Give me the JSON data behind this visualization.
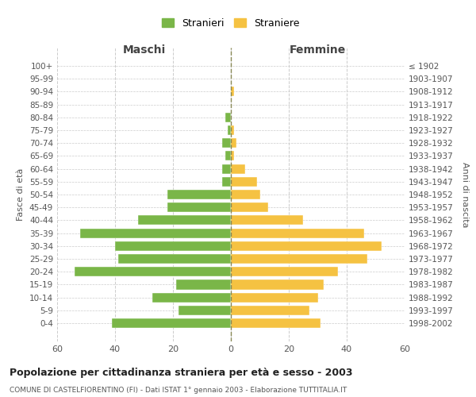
{
  "age_groups": [
    "100+",
    "95-99",
    "90-94",
    "85-89",
    "80-84",
    "75-79",
    "70-74",
    "65-69",
    "60-64",
    "55-59",
    "50-54",
    "45-49",
    "40-44",
    "35-39",
    "30-34",
    "25-29",
    "20-24",
    "15-19",
    "10-14",
    "5-9",
    "0-4"
  ],
  "birth_years": [
    "≤ 1902",
    "1903-1907",
    "1908-1912",
    "1913-1917",
    "1918-1922",
    "1923-1927",
    "1928-1932",
    "1933-1937",
    "1938-1942",
    "1943-1947",
    "1948-1952",
    "1953-1957",
    "1958-1962",
    "1963-1967",
    "1968-1972",
    "1973-1977",
    "1978-1982",
    "1983-1987",
    "1988-1992",
    "1993-1997",
    "1998-2002"
  ],
  "males": [
    0,
    0,
    0,
    0,
    2,
    1,
    3,
    2,
    3,
    3,
    22,
    22,
    32,
    52,
    40,
    39,
    54,
    19,
    27,
    18,
    41
  ],
  "females": [
    0,
    0,
    1,
    0,
    0,
    1,
    2,
    1,
    5,
    9,
    10,
    13,
    25,
    46,
    52,
    47,
    37,
    32,
    30,
    27,
    31
  ],
  "male_color": "#7ab648",
  "female_color": "#f5c242",
  "male_label": "Stranieri",
  "female_label": "Straniere",
  "title": "Popolazione per cittadinanza straniera per età e sesso - 2003",
  "subtitle": "COMUNE DI CASTELFIORENTINO (FI) - Dati ISTAT 1° gennaio 2003 - Elaborazione TUTTITALIA.IT",
  "xlabel_left": "Maschi",
  "xlabel_right": "Femmine",
  "ylabel_left": "Fasce di età",
  "ylabel_right": "Anni di nascita",
  "xlim": 60,
  "background_color": "#ffffff",
  "grid_color": "#cccccc",
  "dashed_line_color": "#888855"
}
